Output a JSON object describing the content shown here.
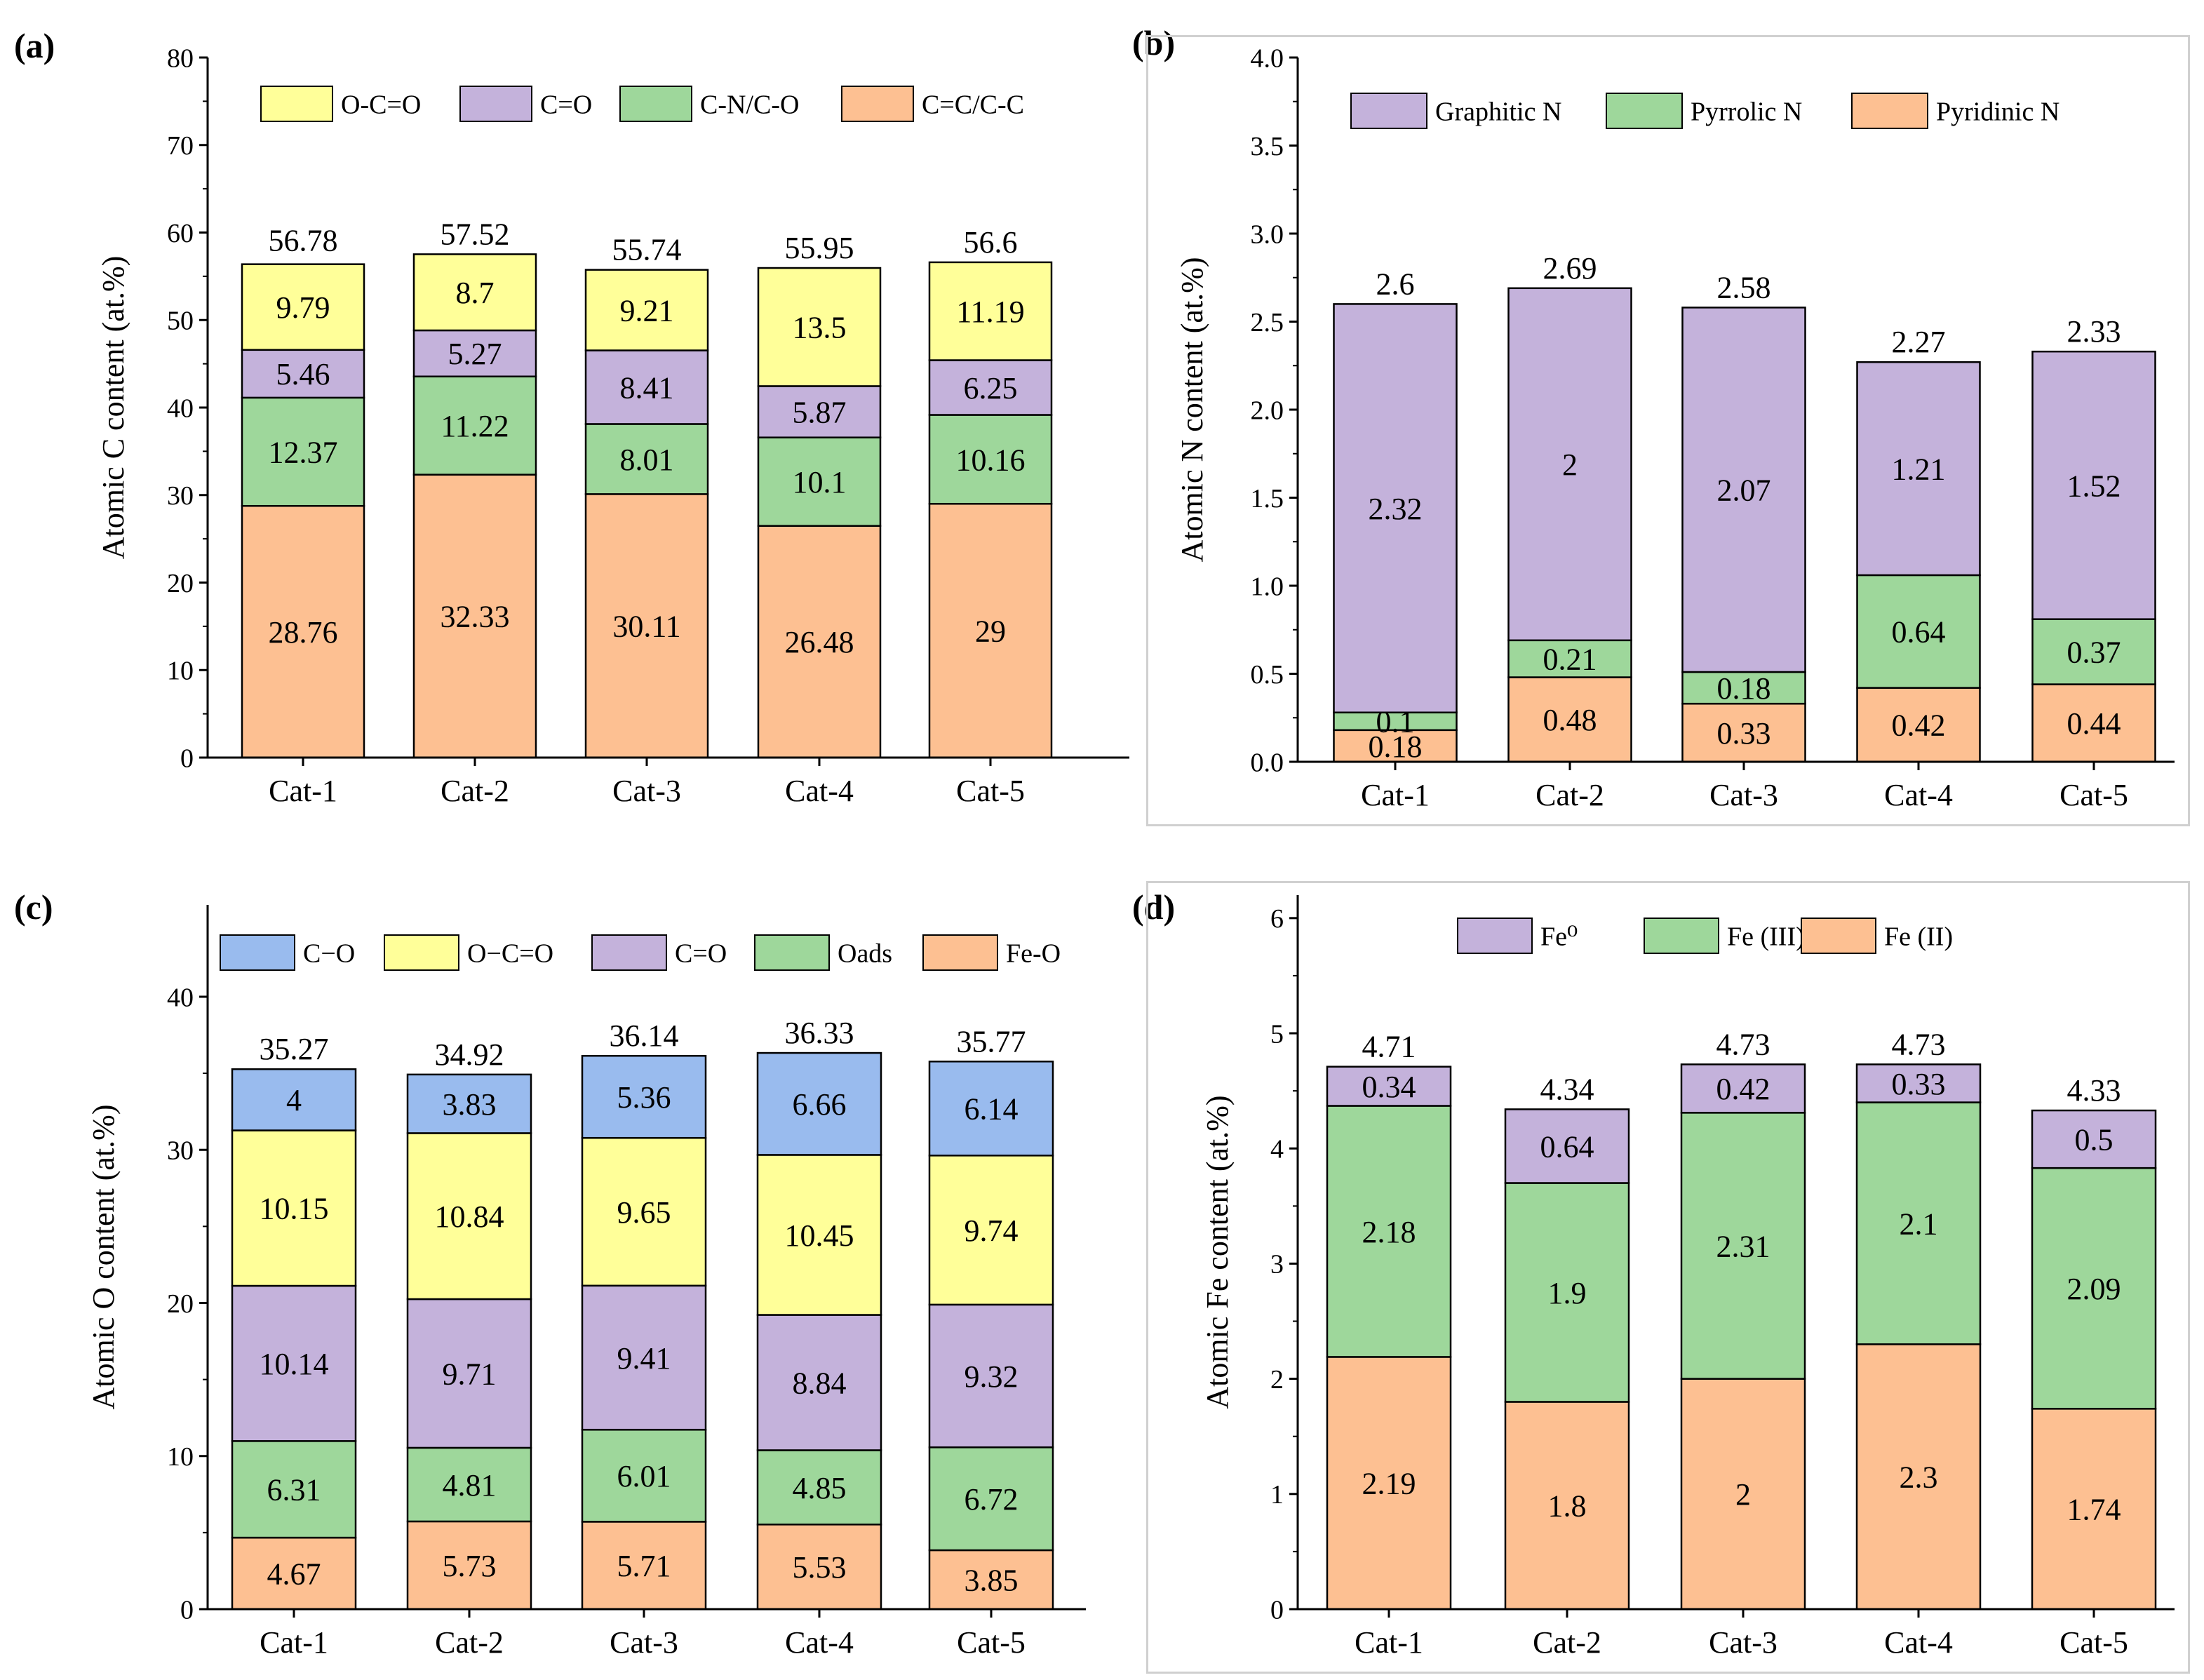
{
  "colors": {
    "O-C=O": "#ffff99",
    "C=O": "#c4b2db",
    "C-N/C-O": "#9ed79b",
    "C=C/C-C": "#fdc092",
    "Graphitic N": "#c4b2db",
    "Pyrrolic N": "#9ed79b",
    "Pyridinic N": "#fdc092",
    "C-O": "#99bbee",
    "Oads": "#9ed79b",
    "Fe-O": "#fdc092",
    "Fe0": "#c4b2db",
    "Fe (III)": "#9ed79b",
    "Fe (II)": "#fdc092"
  },
  "chart_data": [
    {
      "panel": "(a)",
      "type": "bar",
      "stacked": true,
      "categories": [
        "Cat-1",
        "Cat-2",
        "Cat-3",
        "Cat-4",
        "Cat-5"
      ],
      "ylabel": "Atomic C content (at.%)",
      "ylim": [
        0,
        80
      ],
      "yticks": [
        0,
        10,
        20,
        30,
        40,
        50,
        60,
        70,
        80
      ],
      "legend_position": "top",
      "series": [
        {
          "name": "C=C/C-C",
          "values": [
            28.76,
            32.33,
            30.11,
            26.48,
            29
          ],
          "labels": [
            "28.76",
            "32.33",
            "30.11",
            "26.48",
            "29"
          ]
        },
        {
          "name": "C-N/C-O",
          "values": [
            12.37,
            11.22,
            8.01,
            10.1,
            10.16
          ],
          "labels": [
            "12.37",
            "11.22",
            "8.01",
            "10.1",
            "10.16"
          ]
        },
        {
          "name": "C=O",
          "values": [
            5.46,
            5.27,
            8.41,
            5.87,
            6.25
          ],
          "labels": [
            "5.46",
            "5.27",
            "8.41",
            "5.87",
            "6.25"
          ]
        },
        {
          "name": "O-C=O",
          "values": [
            9.79,
            8.7,
            9.21,
            13.5,
            11.19
          ],
          "labels": [
            "9.79",
            "8.7",
            "9.21",
            "13.5",
            "11.19"
          ]
        }
      ],
      "legend": [
        {
          "key": "O-C=O",
          "label": "O-C=O"
        },
        {
          "key": "C=O",
          "label": "C=O"
        },
        {
          "key": "C-N/C-O",
          "label": "C-N/C-O"
        },
        {
          "key": "C=C/C-C",
          "label": "C=C/C-C"
        }
      ],
      "totals": [
        56.78,
        57.52,
        55.74,
        55.95,
        56.6
      ],
      "total_labels": [
        "56.78",
        "57.52",
        "55.74",
        "55.95",
        "56.6"
      ]
    },
    {
      "panel": "(b)",
      "type": "bar",
      "stacked": true,
      "categories": [
        "Cat-1",
        "Cat-2",
        "Cat-3",
        "Cat-4",
        "Cat-5"
      ],
      "ylabel": "Atomic N content (at.%)",
      "ylim": [
        0,
        4.0
      ],
      "yticks": [
        0,
        0.5,
        1.0,
        1.5,
        2.0,
        2.5,
        3.0,
        3.5,
        4.0
      ],
      "ytick_labels": [
        "0.0",
        "0.5",
        "1.0",
        "1.5",
        "2.0",
        "2.5",
        "3.0",
        "3.5",
        "4.0"
      ],
      "legend_position": "top",
      "series": [
        {
          "name": "Pyridinic N",
          "values": [
            0.18,
            0.48,
            0.33,
            0.42,
            0.44
          ],
          "labels": [
            "0.18",
            "0.48",
            "0.33",
            "0.42",
            "0.44"
          ]
        },
        {
          "name": "Pyrrolic N",
          "values": [
            0.1,
            0.21,
            0.18,
            0.64,
            0.37
          ],
          "labels": [
            "0.1",
            "0.21",
            "0.18",
            "0.64",
            "0.37"
          ]
        },
        {
          "name": "Graphitic N",
          "values": [
            2.32,
            2,
            2.07,
            1.21,
            1.52
          ],
          "labels": [
            "2.32",
            "2",
            "2.07",
            "1.21",
            "1.52"
          ]
        }
      ],
      "legend": [
        {
          "key": "Graphitic N",
          "label": "Graphitic N"
        },
        {
          "key": "Pyrrolic N",
          "label": "Pyrrolic N"
        },
        {
          "key": "Pyridinic N",
          "label": "Pyridinic N"
        }
      ],
      "totals": [
        2.6,
        2.69,
        2.58,
        2.27,
        2.33
      ],
      "total_labels": [
        "2.6",
        "2.69",
        "2.58",
        "2.27",
        "2.33"
      ]
    },
    {
      "panel": "(c)",
      "type": "bar",
      "stacked": true,
      "categories": [
        "Cat-1",
        "Cat-2",
        "Cat-3",
        "Cat-4",
        "Cat-5"
      ],
      "ylabel": "Atomic O content (at.%)",
      "ylim": [
        0,
        46
      ],
      "yticks": [
        0,
        10,
        20,
        30,
        40
      ],
      "legend_position": "top",
      "series": [
        {
          "name": "Fe-O",
          "values": [
            4.67,
            5.73,
            5.71,
            5.53,
            3.85
          ],
          "labels": [
            "4.67",
            "5.73",
            "5.71",
            "5.53",
            "3.85"
          ]
        },
        {
          "name": "Oads",
          "values": [
            6.31,
            4.81,
            6.01,
            4.85,
            6.72
          ],
          "labels": [
            "6.31",
            "4.81",
            "6.01",
            "4.85",
            "6.72"
          ]
        },
        {
          "name": "C=O",
          "values": [
            10.14,
            9.71,
            9.41,
            8.84,
            9.32
          ],
          "labels": [
            "10.14",
            "9.71",
            "9.41",
            "8.84",
            "9.32"
          ]
        },
        {
          "name": "O-C=O",
          "values": [
            10.15,
            10.84,
            9.65,
            10.45,
            9.74
          ],
          "labels": [
            "10.15",
            "10.84",
            "9.65",
            "10.45",
            "9.74"
          ]
        },
        {
          "name": "C-O",
          "values": [
            4,
            3.83,
            5.36,
            6.66,
            6.14
          ],
          "labels": [
            "4",
            "3.83",
            "5.36",
            "6.66",
            "6.14"
          ]
        }
      ],
      "legend": [
        {
          "key": "C-O",
          "label": "C−O"
        },
        {
          "key": "O-C=O",
          "label": "O−C=O"
        },
        {
          "key": "C=O",
          "label": "C=O"
        },
        {
          "key": "Oads",
          "label": "Oads"
        },
        {
          "key": "Fe-O",
          "label": "Fe-O"
        }
      ],
      "totals": [
        35.27,
        34.92,
        36.14,
        36.33,
        35.77
      ],
      "total_labels": [
        "35.27",
        "34.92",
        "36.14",
        "36.33",
        "35.77"
      ]
    },
    {
      "panel": "(d)",
      "type": "bar",
      "stacked": true,
      "categories": [
        "Cat-1",
        "Cat-2",
        "Cat-3",
        "Cat-4",
        "Cat-5"
      ],
      "ylabel": "Atomic Fe content (at.%)",
      "ylim": [
        0,
        6.2
      ],
      "yticks": [
        0,
        1,
        2,
        3,
        4,
        5,
        6
      ],
      "legend_position": "top",
      "series": [
        {
          "name": "Fe (II)",
          "values": [
            2.19,
            1.8,
            2,
            2.3,
            1.74
          ],
          "labels": [
            "2.19",
            "1.8",
            "2",
            "2.3",
            "1.74"
          ]
        },
        {
          "name": "Fe (III)",
          "values": [
            2.18,
            1.9,
            2.31,
            2.1,
            2.09
          ],
          "labels": [
            "2.18",
            "1.9",
            "2.31",
            "2.1",
            "2.09"
          ]
        },
        {
          "name": "Fe0",
          "values": [
            0.34,
            0.64,
            0.42,
            0.33,
            0.5
          ],
          "labels": [
            "0.34",
            "0.64",
            "0.42",
            "0.33",
            "0.5"
          ]
        }
      ],
      "legend": [
        {
          "key": "Fe0",
          "label": "Fe⁰"
        },
        {
          "key": "Fe (III)",
          "label": "Fe (III)"
        },
        {
          "key": "Fe (II)",
          "label": "Fe (II)"
        }
      ],
      "totals": [
        4.71,
        4.34,
        4.73,
        4.73,
        4.33
      ],
      "total_labels": [
        "4.71",
        "4.34",
        "4.73",
        "4.73",
        "4.33"
      ]
    }
  ]
}
